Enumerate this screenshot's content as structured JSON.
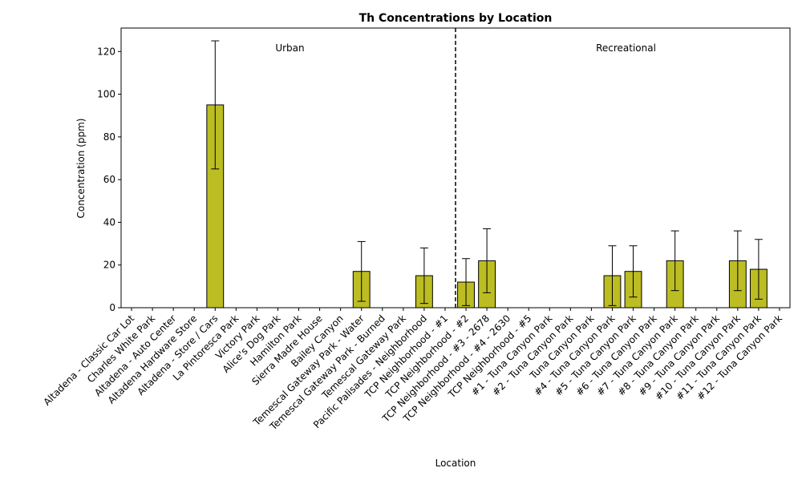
{
  "chart_data": {
    "type": "bar",
    "title": "Th Concentrations by Location",
    "xlabel": "Location",
    "ylabel": "Concentration (ppm)",
    "ylim": [
      0,
      131
    ],
    "yticks": [
      0,
      20,
      40,
      60,
      80,
      100,
      120
    ],
    "bar_color": "#bcbd22",
    "bar_edge_color": "#000000",
    "group_divider_after_category": 15,
    "groups": [
      {
        "label": "Urban",
        "categories": [
          0,
          15
        ]
      },
      {
        "label": "Recreational",
        "categories": [
          16,
          30
        ]
      }
    ],
    "categories": [
      "Altadena - Classic Car Lot",
      "Charles White Park",
      "Altadena - Auto Center",
      "Altadena Hardware Store",
      "Altadena - Store / Cars",
      "La Pintoresca Park",
      "Victory Park",
      "Alice's Dog Park",
      "Hamilton Park",
      "Sierra Madre House",
      "Bailey Canyon",
      "Temescal Gateway Park - Water",
      "Temescal Gateway Park - Burned",
      "Temescal Gateway Park",
      "Pacific Palisades - Neighborhood",
      "TCP Neighborhood - #1",
      "TCP Neighborhood - #2",
      "TCP Neighborhood - #3 - 2678",
      "TCP Neighborhood - #4 - 2630",
      "TCP Neighborhood - #5",
      "#1 - Tuna Canyon Park",
      "#2 - Tuna Canyon Park",
      "Tuna Canyon Park",
      "#4 - Tuna Canyon Park",
      "#5 - Tuna Canyon Park",
      "#6 - Tuna Canyon Park",
      "#7 - Tuna Canyon Park",
      "#8 - Tuna Canyon Park",
      "#9 - Tuna Canyon Park",
      "#10 - Tuna Canyon Park",
      "#11 - Tuna Canyon Park",
      "#12 - Tuna Canyon Park"
    ],
    "values": [
      null,
      null,
      null,
      null,
      95,
      null,
      null,
      null,
      null,
      null,
      null,
      17,
      null,
      null,
      15,
      null,
      12,
      22,
      null,
      null,
      null,
      null,
      null,
      15,
      17,
      null,
      22,
      null,
      null,
      22,
      18,
      null
    ],
    "error_low": [
      null,
      null,
      null,
      null,
      65,
      null,
      null,
      null,
      null,
      null,
      null,
      3,
      null,
      null,
      2,
      null,
      1,
      7,
      null,
      null,
      null,
      null,
      null,
      1,
      5,
      null,
      8,
      null,
      null,
      8,
      4,
      null
    ],
    "error_high": [
      null,
      null,
      null,
      null,
      125,
      null,
      null,
      null,
      null,
      null,
      null,
      31,
      null,
      null,
      28,
      null,
      23,
      37,
      null,
      null,
      null,
      null,
      null,
      29,
      29,
      null,
      36,
      null,
      null,
      36,
      32,
      null
    ]
  }
}
